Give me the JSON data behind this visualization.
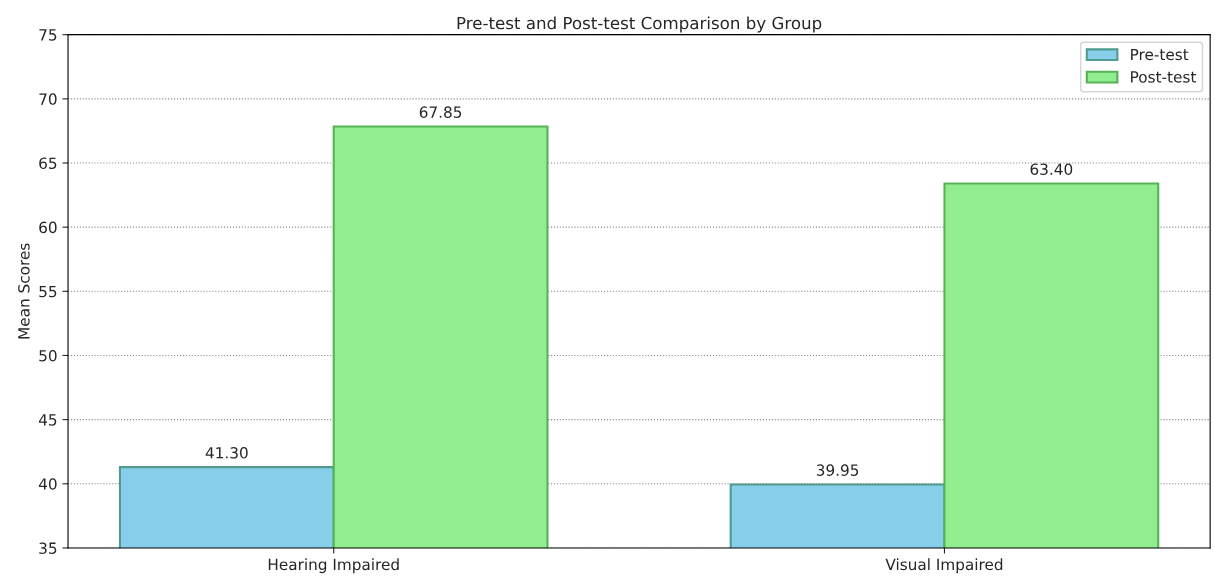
{
  "chart_data": {
    "type": "bar",
    "title": "Pre-test and Post-test Comparison by Group",
    "ylabel": "Mean Scores",
    "categories": [
      "Hearing Impaired",
      "Visual Impaired"
    ],
    "series": [
      {
        "name": "Pre-test",
        "color": "#87ceeb",
        "values": [
          41.3,
          39.95
        ],
        "value_labels": [
          "41.30",
          "39.95"
        ]
      },
      {
        "name": "Post-test",
        "color": "#90ee90",
        "values": [
          67.85,
          63.4
        ],
        "value_labels": [
          "67.85",
          "63.40"
        ]
      }
    ],
    "ylim": [
      35,
      75
    ],
    "yticks": [
      35,
      40,
      45,
      50,
      55,
      60,
      65,
      70,
      75
    ],
    "grid": "y",
    "legend": "top right"
  }
}
